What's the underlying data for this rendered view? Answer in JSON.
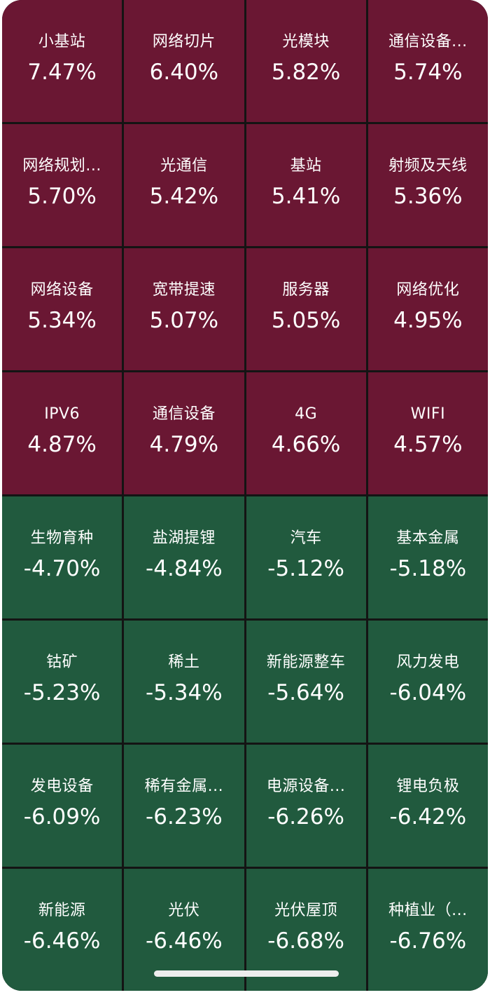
{
  "tiles": [
    {
      "name": "小基站",
      "change": "7.47%",
      "trend": "up"
    },
    {
      "name": "网络切片",
      "change": "6.40%",
      "trend": "up"
    },
    {
      "name": "光模块",
      "change": "5.82%",
      "trend": "up"
    },
    {
      "name": "通信设备...",
      "change": "5.74%",
      "trend": "up"
    },
    {
      "name": "网络规划...",
      "change": "5.70%",
      "trend": "up"
    },
    {
      "name": "光通信",
      "change": "5.42%",
      "trend": "up"
    },
    {
      "name": "基站",
      "change": "5.41%",
      "trend": "up"
    },
    {
      "name": "射频及天线",
      "change": "5.36%",
      "trend": "up"
    },
    {
      "name": "网络设备",
      "change": "5.34%",
      "trend": "up"
    },
    {
      "name": "宽带提速",
      "change": "5.07%",
      "trend": "up"
    },
    {
      "name": "服务器",
      "change": "5.05%",
      "trend": "up"
    },
    {
      "name": "网络优化",
      "change": "4.95%",
      "trend": "up"
    },
    {
      "name": "IPV6",
      "change": "4.87%",
      "trend": "up"
    },
    {
      "name": "通信设备",
      "change": "4.79%",
      "trend": "up"
    },
    {
      "name": "4G",
      "change": "4.66%",
      "trend": "up"
    },
    {
      "name": "WIFI",
      "change": "4.57%",
      "trend": "up"
    },
    {
      "name": "生物育种",
      "change": "-4.70%",
      "trend": "down"
    },
    {
      "name": "盐湖提锂",
      "change": "-4.84%",
      "trend": "down"
    },
    {
      "name": "汽车",
      "change": "-5.12%",
      "trend": "down"
    },
    {
      "name": "基本金属",
      "change": "-5.18%",
      "trend": "down"
    },
    {
      "name": "钴矿",
      "change": "-5.23%",
      "trend": "down"
    },
    {
      "name": "稀土",
      "change": "-5.34%",
      "trend": "down"
    },
    {
      "name": "新能源整车",
      "change": "-5.64%",
      "trend": "down"
    },
    {
      "name": "风力发电",
      "change": "-6.04%",
      "trend": "down"
    },
    {
      "name": "发电设备",
      "change": "-6.09%",
      "trend": "down"
    },
    {
      "name": "稀有金属...",
      "change": "-6.23%",
      "trend": "down"
    },
    {
      "name": "电源设备...",
      "change": "-6.26%",
      "trend": "down"
    },
    {
      "name": "锂电负极",
      "change": "-6.42%",
      "trend": "down"
    },
    {
      "name": "新能源",
      "change": "-6.46%",
      "trend": "down"
    },
    {
      "name": "光伏",
      "change": "-6.46%",
      "trend": "down"
    },
    {
      "name": "光伏屋顶",
      "change": "-6.68%",
      "trend": "down"
    },
    {
      "name": "种植业（...",
      "change": "-6.76%",
      "trend": "down"
    }
  ],
  "colors": {
    "up": "#6a1733",
    "down": "#215a3e",
    "gap": "#141414",
    "text": "#ffffff"
  }
}
